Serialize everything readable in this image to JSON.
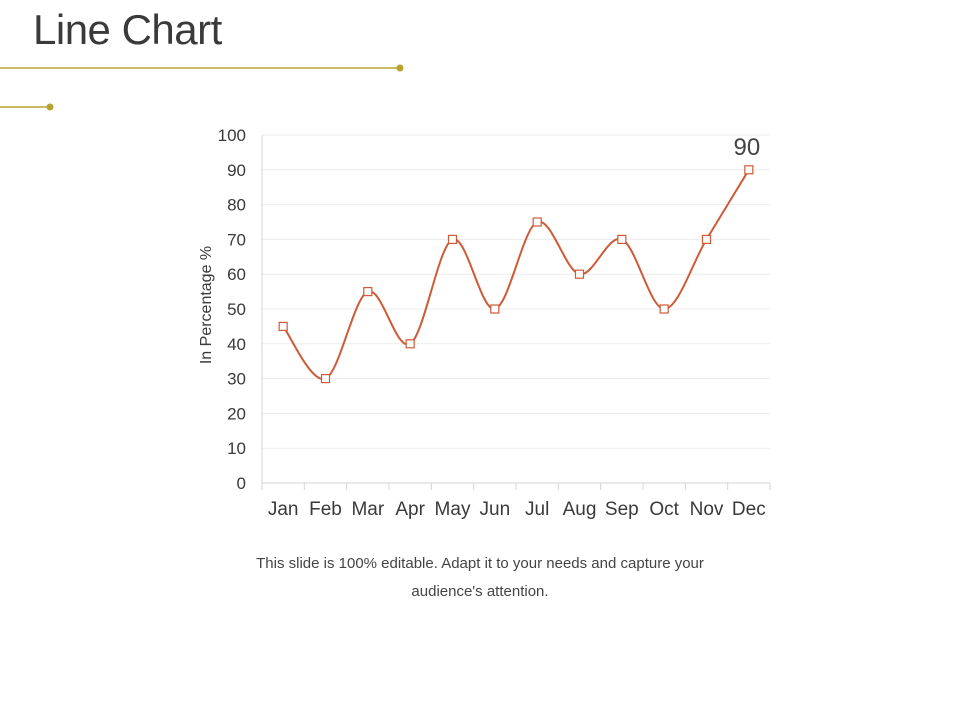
{
  "slide": {
    "title": "Line Chart",
    "caption_line1": "This slide is 100% editable. Adapt it to your needs and capture your",
    "caption_line2": "audience's attention."
  },
  "colors": {
    "accent_gold": "#b8a330",
    "line": "#cf5a36",
    "grid": "#ececec",
    "axis": "#d4d4d4",
    "text": "#3a3a3a"
  },
  "chart_data": {
    "type": "line",
    "title": "",
    "xlabel": "",
    "ylabel": "In Percentage %",
    "categories": [
      "Jan",
      "Feb",
      "Mar",
      "Apr",
      "May",
      "Jun",
      "Jul",
      "Aug",
      "Sep",
      "Oct",
      "Nov",
      "Dec"
    ],
    "series": [
      {
        "values": [
          45,
          30,
          55,
          40,
          70,
          50,
          75,
          60,
          70,
          50,
          70,
          90
        ]
      }
    ],
    "ylim": [
      0,
      100
    ],
    "yticks": [
      0,
      10,
      20,
      30,
      40,
      50,
      60,
      70,
      80,
      90,
      100
    ],
    "grid": true,
    "smooth": true,
    "marker": "square",
    "data_labels": [
      {
        "category": "Dec",
        "value": "90"
      }
    ]
  }
}
